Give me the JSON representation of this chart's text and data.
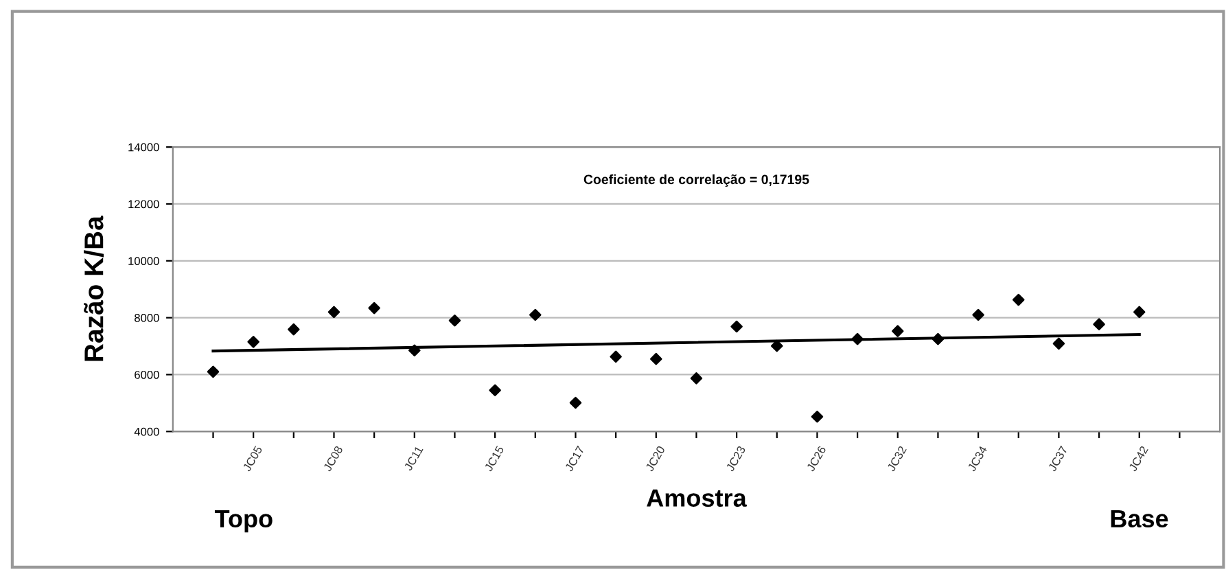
{
  "chart_data": {
    "type": "scatter",
    "ylabel": "Razão K/Ba",
    "xlabel": "Amostra",
    "annotations": [
      "Coeficiente de correlação = 0,17195",
      "Topo",
      "Base"
    ],
    "categories": [
      null,
      "JC05",
      null,
      "JC08",
      null,
      "JC11",
      null,
      "JC15",
      null,
      "JC17",
      null,
      "JC20",
      null,
      "JC23",
      null,
      "JC26",
      null,
      "JC32",
      null,
      "JC34",
      null,
      "JC37",
      null,
      "JC42",
      null
    ],
    "series": [
      {
        "color": "#000000",
        "marker": "diamond",
        "values": [
          6100,
          7150,
          7590,
          8200,
          8340,
          6850,
          7900,
          5450,
          8100,
          5010,
          6630,
          6550,
          5870,
          7690,
          7010,
          4520,
          7250,
          7530,
          7250,
          8100,
          8630,
          7090,
          7770,
          8200,
          null
        ]
      },
      {
        "type": "line",
        "color": "#000000",
        "line_style": "solid",
        "values": [
          6830,
          null,
          null,
          null,
          null,
          null,
          null,
          null,
          null,
          null,
          null,
          null,
          null,
          null,
          null,
          null,
          null,
          null,
          null,
          null,
          null,
          null,
          null,
          7410,
          null
        ]
      }
    ],
    "ylim": [
      4000,
      14000
    ],
    "yticks": [
      4000,
      6000,
      8000,
      10000,
      12000,
      14000
    ],
    "grid": "y"
  }
}
